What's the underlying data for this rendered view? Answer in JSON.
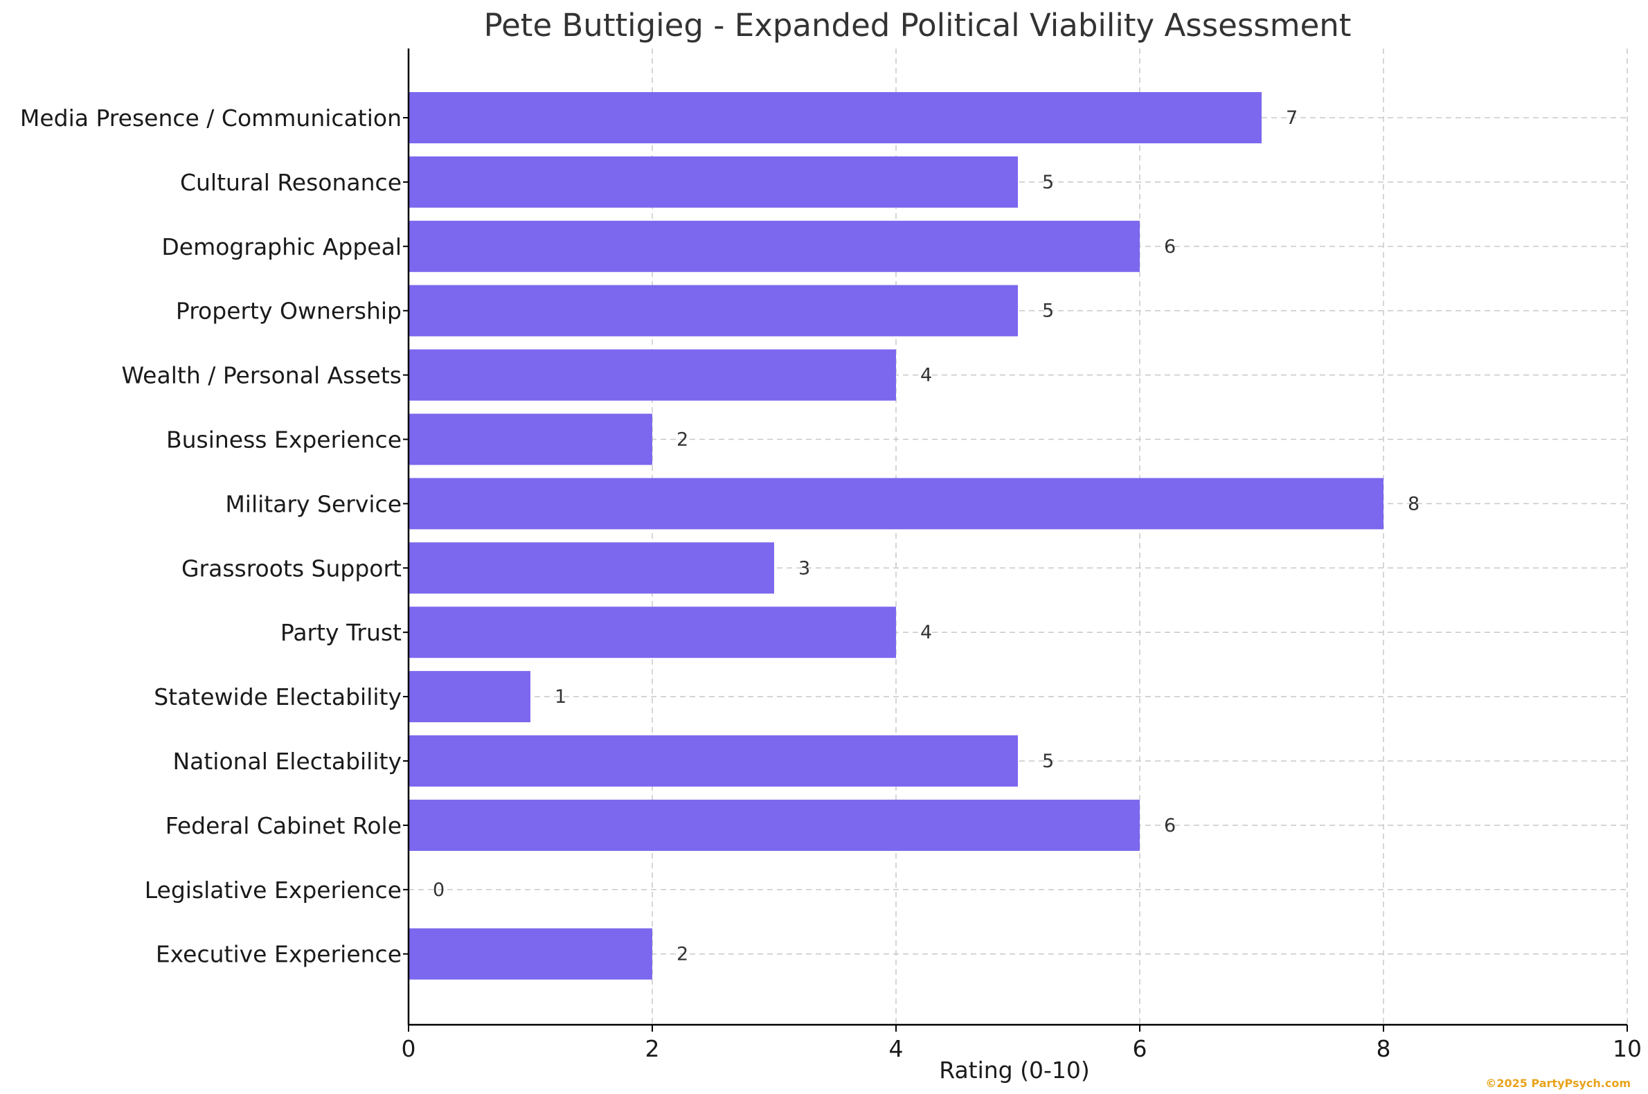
{
  "chart_data": {
    "type": "bar",
    "orientation": "horizontal",
    "title": "Pete Buttigieg - Expanded Political Viability Assessment",
    "xlabel": "Rating (0-10)",
    "ylabel": "",
    "xlim": [
      0,
      10
    ],
    "xticks": [
      0,
      2,
      4,
      6,
      8,
      10
    ],
    "grid": true,
    "bar_color": "#7b68ee",
    "categories": [
      "Media Presence / Communication",
      "Cultural Resonance",
      "Demographic Appeal",
      "Property Ownership",
      "Wealth / Personal Assets",
      "Business Experience",
      "Military Service",
      "Grassroots Support",
      "Party Trust",
      "Statewide Electability",
      "National Electability",
      "Federal Cabinet Role",
      "Legislative Experience",
      "Executive Experience"
    ],
    "values": [
      7,
      5,
      6,
      5,
      4,
      2,
      8,
      3,
      4,
      1,
      5,
      6,
      0,
      2
    ]
  },
  "watermark": "©2025 PartyPsych.com"
}
